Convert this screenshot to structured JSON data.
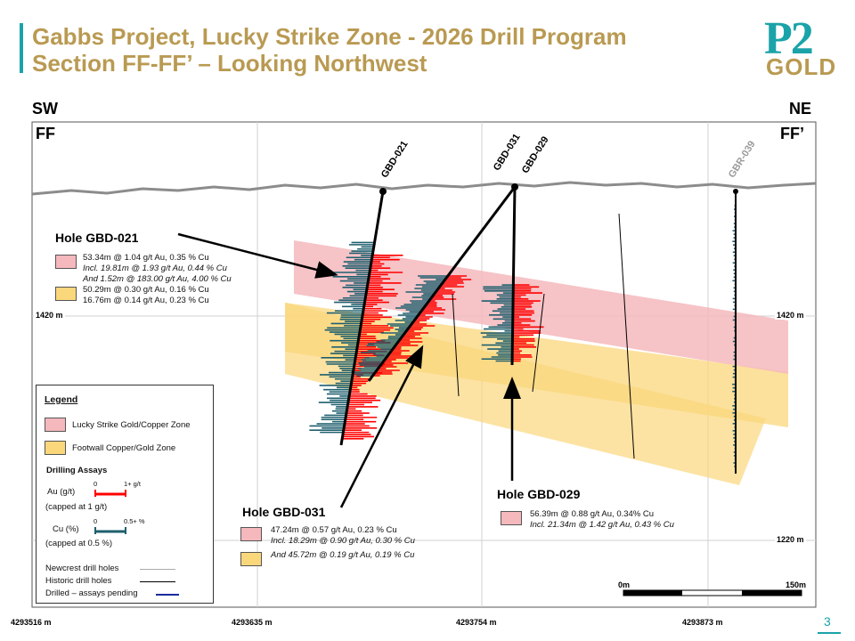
{
  "title": {
    "line1": "Gabbs Project, Lucky Strike Zone - 2026 Drill Program",
    "line2": "Section FF-FF’ – Looking Northwest"
  },
  "logo": {
    "top": "P2",
    "bottom": "GOLD"
  },
  "orientation": {
    "left": "SW",
    "right": "NE",
    "left_section": "FF",
    "right_section": "FF’"
  },
  "eastings": [
    "4293516 m",
    "4293635 m",
    "4293754 m",
    "4293873 m"
  ],
  "elevations": {
    "upper": "1420 m",
    "lower": "1220 m"
  },
  "collars": {
    "gbd021": "GBD-021",
    "gbd031": "GBD-031",
    "gbd029": "GBD-029",
    "gbr039": "GBR-039"
  },
  "hole021": {
    "heading": "Hole GBD-021",
    "lines": [
      "53.34m @  1.04 g/t Au, 0.35 % Cu",
      "Incl. 19.81m @ 1.93 g/t Au, 0.44 % Cu",
      "And 1.52m @ 183.00 g/t Au, 4.00 % Cu",
      "50.29m @ 0.30 g/t Au, 0.16 % Cu",
      "16.76m @ 0.14 g/t Au, 0.23 % Cu"
    ]
  },
  "hole031": {
    "heading": "Hole GBD-031",
    "lines": [
      "47.24m @  0.57 g/t Au, 0.23 % Cu",
      "Incl. 18.29m @ 0.90 g/t Au, 0.30 % Cu",
      "And 45.72m @  0.19 g/t Au, 0.19 % Cu"
    ]
  },
  "hole029": {
    "heading": "Hole GBD-029",
    "lines": [
      "56.39m @  0.88 g/t Au, 0.34% Cu",
      "Incl. 21.34m @ 1.42 g/t Au, 0.43 % Cu"
    ]
  },
  "legend": {
    "title": "Legend",
    "zone1": "Lucky Strike Gold/Copper Zone",
    "zone2": "Footwall Copper/Gold Zone",
    "assays_title": "Drilling Assays",
    "au_label": "Au (g/t)",
    "au_min": "0",
    "au_max": "1+ g/t",
    "au_cap": "(capped at 1 g/t)",
    "cu_label": "Cu (%)",
    "cu_min": "0",
    "cu_max": "0.5+ %",
    "cu_cap": "(capped at 0.5 %)",
    "newcrest": "Newcrest drill holes",
    "historic": "Historic drill holes",
    "pending": "Drilled – assays pending"
  },
  "scale": {
    "start": "0m",
    "end": "150m"
  },
  "page_number": "3",
  "colors": {
    "teal": "#1aa3a8",
    "gold": "#b99a52",
    "au": "#ff0000",
    "cu": "#1f5f6e",
    "zone_pink": "#f5b8bd",
    "zone_yellow": "#fbd77c"
  }
}
